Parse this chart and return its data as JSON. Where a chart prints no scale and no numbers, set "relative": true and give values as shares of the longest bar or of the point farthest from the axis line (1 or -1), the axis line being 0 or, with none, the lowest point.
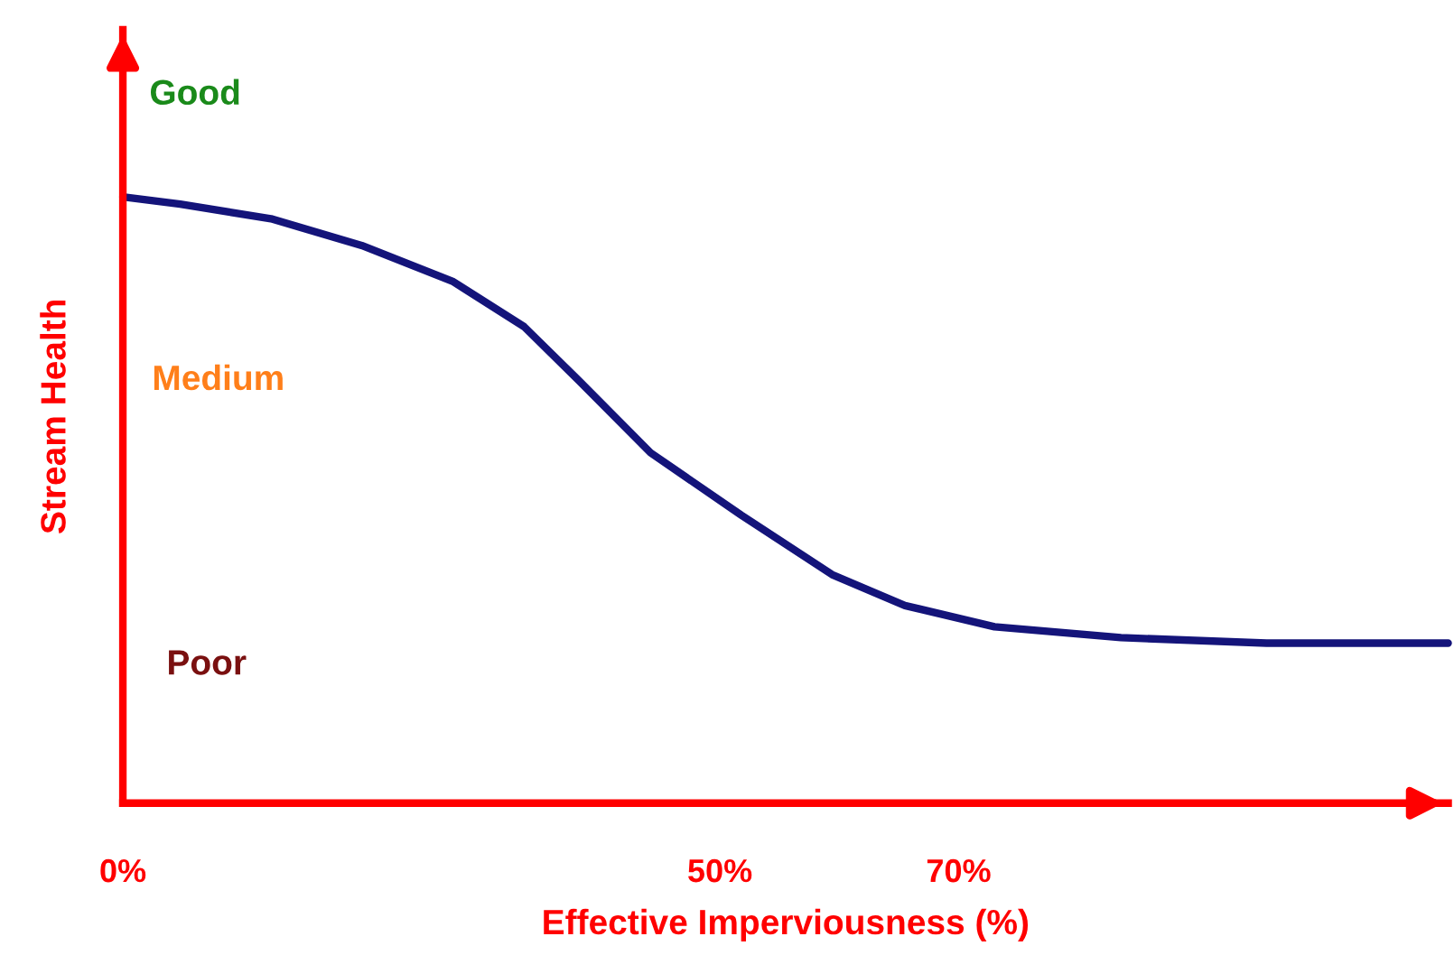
{
  "chart_data": {
    "type": "line",
    "relative": true,
    "xlabel": "Effective Imperviousness (%)",
    "ylabel": "Stream Health",
    "x": [
      0,
      4.8,
      12.4,
      20,
      27.6,
      33.6,
      38.2,
      44.2,
      51.8,
      59.4,
      65.5,
      73,
      83.6,
      95.8,
      111
    ],
    "series": [
      {
        "color": "#14147a",
        "values": [
          1,
          0.988,
          0.964,
          0.92,
          0.861,
          0.786,
          0.697,
          0.578,
          0.475,
          0.377,
          0.326,
          0.291,
          0.273,
          0.264,
          0.264
        ]
      }
    ],
    "xlim": [
      0,
      111
    ],
    "xticks": [
      {
        "value": 0,
        "label": "0%"
      },
      {
        "value": 50,
        "label": "50%"
      },
      {
        "value": 70,
        "label": "70%"
      }
    ],
    "annotations": [
      "Good",
      "Medium",
      "Poor"
    ],
    "grid": false,
    "legend": false,
    "marker": "none",
    "line_style": "solid"
  }
}
